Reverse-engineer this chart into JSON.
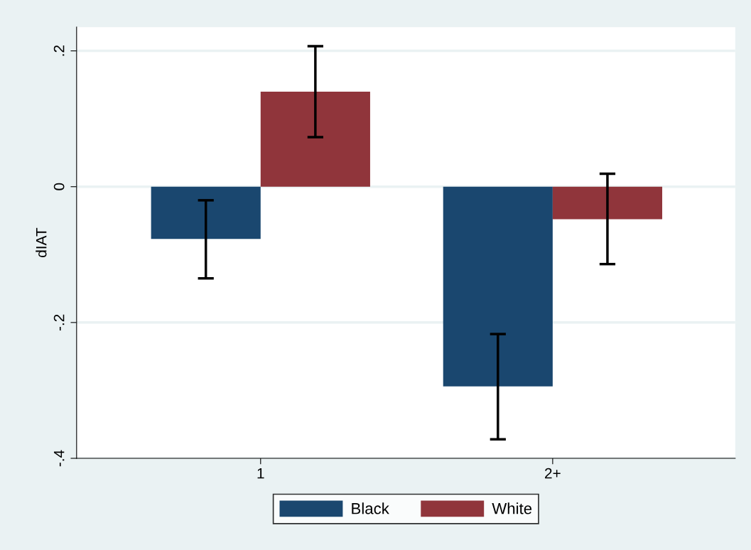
{
  "chart_data": {
    "type": "bar",
    "ylabel": "dIAT",
    "categories": [
      "1",
      "2+"
    ],
    "series": [
      {
        "name": "Black",
        "color": "#1a476f",
        "values": [
          -0.077,
          -0.294
        ],
        "errors": [
          [
            -0.135,
            -0.02
          ],
          [
            -0.372,
            -0.217
          ]
        ]
      },
      {
        "name": "White",
        "color": "#90353b",
        "values": [
          0.14,
          -0.048
        ],
        "errors": [
          [
            0.073,
            0.207
          ],
          [
            -0.114,
            0.019
          ]
        ]
      }
    ],
    "ylim": [
      -0.4,
      0.235
    ],
    "yticks": [
      {
        "value": -0.4,
        "label": "-.4"
      },
      {
        "value": -0.2,
        "label": "-.2"
      },
      {
        "value": 0,
        "label": "0"
      },
      {
        "value": 0.2,
        "label": ".2"
      }
    ],
    "grid": "y",
    "legend": "bottom"
  }
}
